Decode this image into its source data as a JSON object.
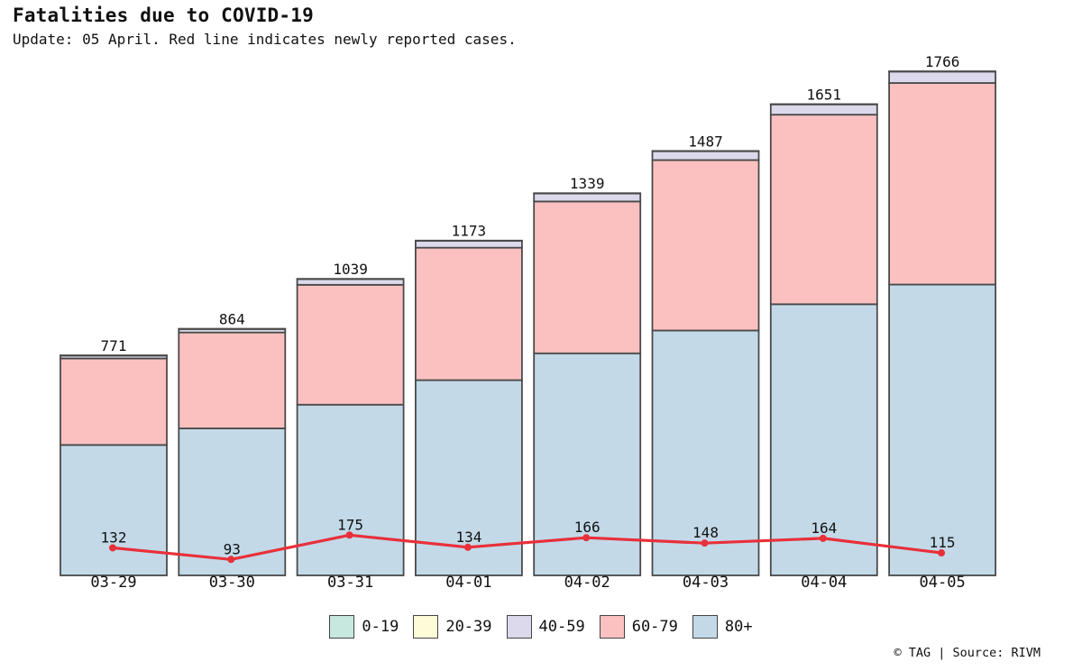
{
  "header": {
    "title": "Fatalities due to COVID-19",
    "subtitle": "Update: 05 April. Red line indicates newly reported cases."
  },
  "footer": {
    "credit": "© TAG | Source: RIVM"
  },
  "chart_data": {
    "type": "bar",
    "stacked": true,
    "categories": [
      "03-29",
      "03-30",
      "03-31",
      "04-01",
      "04-02",
      "04-03",
      "04-04",
      "04-05"
    ],
    "totals": [
      771,
      864,
      1039,
      1173,
      1339,
      1487,
      1651,
      1766
    ],
    "series": [
      {
        "name": "0-19",
        "color": "#c6e8de",
        "values": [
          0,
          0,
          0,
          0,
          0,
          0,
          0,
          0
        ]
      },
      {
        "name": "20-39",
        "color": "#fefcd8",
        "values": [
          1,
          1,
          1,
          1,
          1,
          1,
          1,
          1
        ]
      },
      {
        "name": "40-59",
        "color": "#dcd9ec",
        "values": [
          10,
          12,
          20,
          24,
          28,
          31,
          36,
          40
        ]
      },
      {
        "name": "60-79",
        "color": "#fbc1c1",
        "values": [
          303,
          336,
          420,
          464,
          532,
          597,
          664,
          706
        ]
      },
      {
        "name": "80+",
        "color": "#c3d9e8",
        "values": [
          457,
          515,
          598,
          684,
          778,
          858,
          950,
          1019
        ]
      }
    ],
    "line": {
      "color": "#e8303a",
      "values": [
        132,
        93,
        175,
        134,
        166,
        148,
        164,
        115
      ]
    },
    "legend_position": "bottom-center",
    "grid": false
  }
}
